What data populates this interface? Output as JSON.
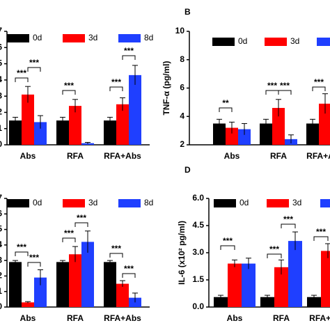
{
  "chart_data": [
    {
      "type": "bar",
      "categories": [
        "Abs",
        "RFA",
        "RFA+Abs"
      ],
      "series": [
        {
          "name": "0d",
          "color": "#000000",
          "values": [
            1.5,
            1.5,
            1.5
          ],
          "errors": [
            0.2,
            0.2,
            0.2
          ]
        },
        {
          "name": "3d",
          "color": "#ff0000",
          "values": [
            3.1,
            2.4,
            2.5
          ],
          "errors": [
            0.5,
            0.4,
            0.4
          ]
        },
        {
          "name": "8d",
          "color": "#1f3fff",
          "values": [
            1.4,
            0.1,
            4.3
          ],
          "errors": [
            0.4,
            0.05,
            0.6
          ]
        }
      ],
      "ylim": [
        0,
        7
      ],
      "yticks": [
        0,
        1,
        2,
        3,
        4,
        5,
        6,
        7
      ],
      "legend": "top",
      "annotations": [
        "***",
        "***",
        "***",
        "***",
        "***"
      ]
    },
    {
      "type": "bar",
      "title": "B",
      "ylabel": "TNF-α (pg/ml)",
      "categories": [
        "Abs",
        "RFA",
        "RFA+Abs"
      ],
      "series": [
        {
          "name": "0d",
          "color": "#000000",
          "values": [
            3.5,
            3.5,
            3.5
          ],
          "errors": [
            0.3,
            0.3,
            0.3
          ]
        },
        {
          "name": "3d",
          "color": "#ff0000",
          "values": [
            3.2,
            4.6,
            4.9
          ],
          "errors": [
            0.4,
            0.6,
            0.7
          ]
        },
        {
          "name": "8d",
          "color": "#1f3fff",
          "values": [
            3.1,
            2.4,
            null
          ],
          "errors": [
            0.4,
            0.3,
            null
          ]
        }
      ],
      "ylim": [
        2,
        10
      ],
      "yticks": [
        2,
        4,
        6,
        8,
        10
      ],
      "legend": "top",
      "annotations": [
        "**",
        "***",
        "***",
        "***"
      ]
    },
    {
      "type": "bar",
      "categories": [
        "Abs",
        "RFA",
        "RFA+Abs"
      ],
      "series": [
        {
          "name": "0d",
          "color": "#000000",
          "values": [
            2.9,
            2.9,
            2.9
          ],
          "errors": [
            0.1,
            0.1,
            0.1
          ]
        },
        {
          "name": "3d",
          "color": "#ff0000",
          "values": [
            0.3,
            3.4,
            1.5
          ],
          "errors": [
            0.05,
            0.5,
            0.2
          ]
        },
        {
          "name": "8d",
          "color": "#1f3fff",
          "values": [
            1.9,
            4.2,
            0.6
          ],
          "errors": [
            0.5,
            0.7,
            0.3
          ]
        }
      ],
      "ylim": [
        0,
        7
      ],
      "yticks": [
        0,
        1,
        2,
        3,
        4,
        5,
        6,
        7
      ],
      "legend": "top",
      "annotations": [
        "***",
        "***",
        "***",
        "***",
        "***",
        "***"
      ]
    },
    {
      "type": "bar",
      "title": "D",
      "ylabel": "IL-6 (x10² pg/ml)",
      "categories": [
        "Abs",
        "RFA",
        "RFA+Abs"
      ],
      "series": [
        {
          "name": "0d",
          "color": "#000000",
          "values": [
            0.55,
            0.55,
            0.55
          ],
          "errors": [
            0.1,
            0.1,
            0.1
          ]
        },
        {
          "name": "3d",
          "color": "#ff0000",
          "values": [
            2.4,
            2.2,
            3.1
          ],
          "errors": [
            0.2,
            0.4,
            0.4
          ]
        },
        {
          "name": "8d",
          "color": "#1f3fff",
          "values": [
            2.4,
            3.65,
            null
          ],
          "errors": [
            0.3,
            0.5,
            null
          ]
        }
      ],
      "ylim": [
        0,
        6
      ],
      "yticks": [
        {
          "value": 0,
          "label": "0.0"
        },
        1.5,
        {
          "value": 3,
          "label": "3.0"
        },
        4.5,
        {
          "value": 6,
          "label": "6.0"
        }
      ],
      "legend": "top",
      "annotations": [
        "***",
        "***",
        "***",
        "***"
      ]
    }
  ]
}
